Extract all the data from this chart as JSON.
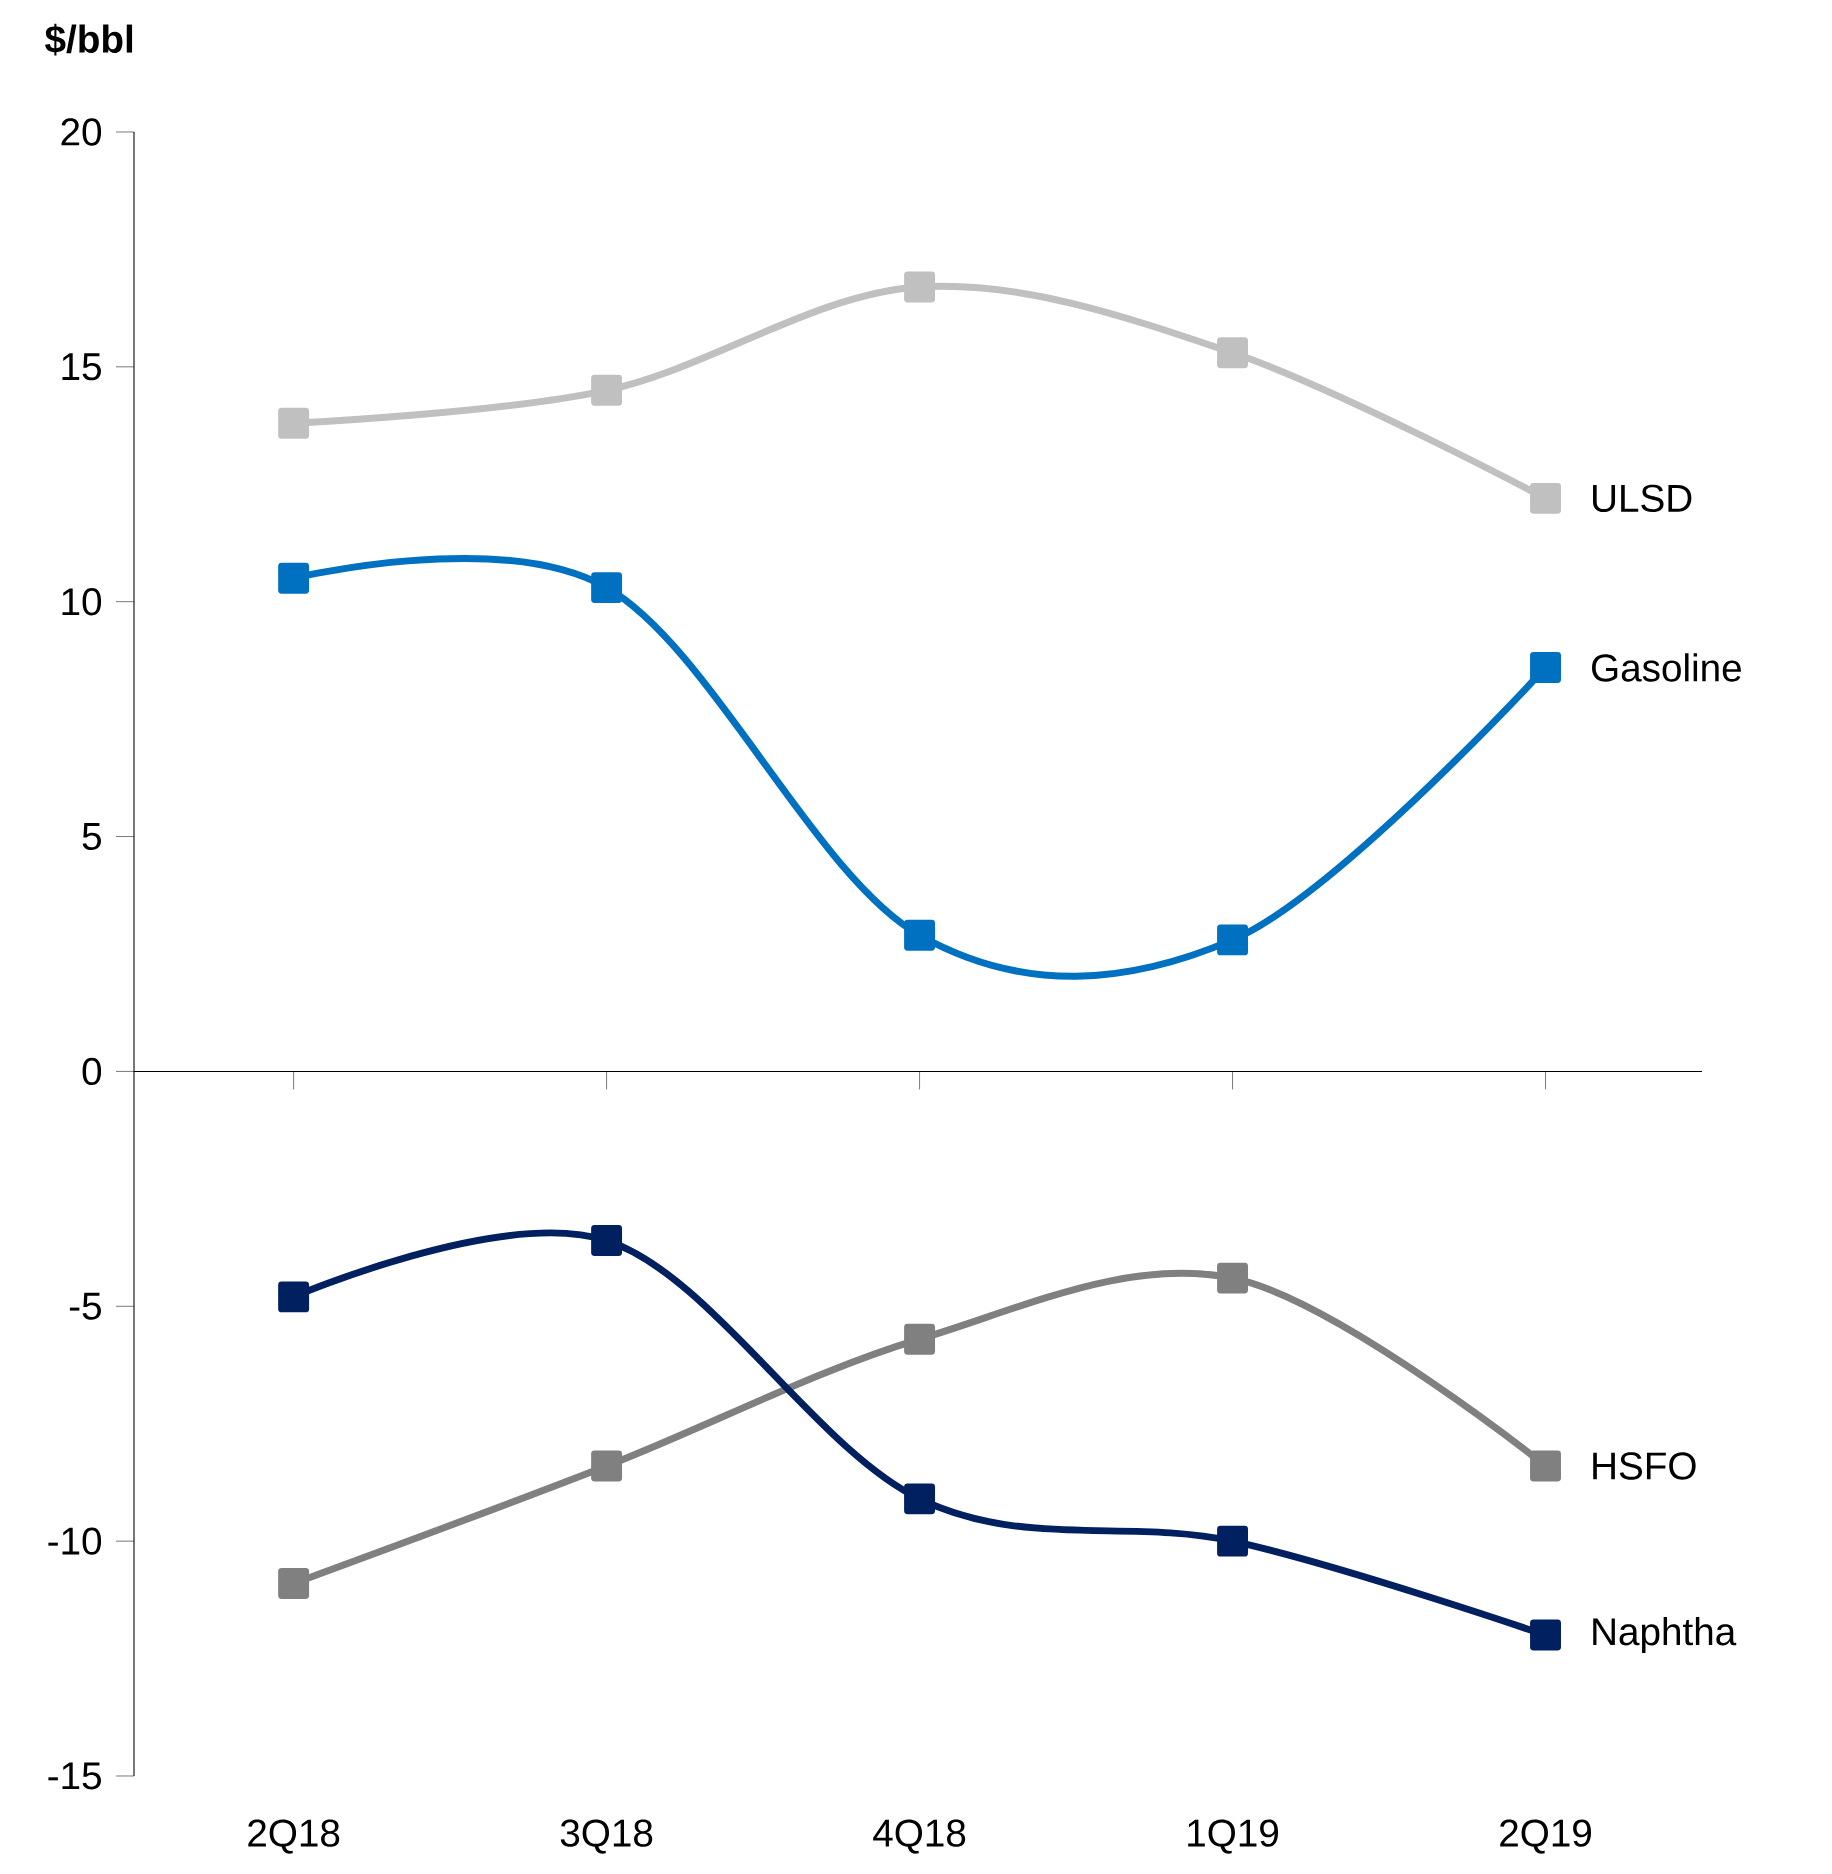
{
  "chart_data": {
    "type": "line",
    "ylabel": "$/bbl",
    "categories": [
      "2Q18",
      "3Q18",
      "4Q18",
      "1Q19",
      "2Q19"
    ],
    "series": [
      {
        "name": "ULSD",
        "color": "#c0c0c0",
        "values": [
          13.8,
          14.5,
          16.7,
          15.3,
          12.2
        ]
      },
      {
        "name": "Gasoline",
        "color": "#0070c0",
        "values": [
          10.5,
          10.3,
          2.9,
          2.8,
          8.6
        ]
      },
      {
        "name": "HSFO",
        "color": "#808080",
        "values": [
          -10.9,
          -8.4,
          -5.7,
          -4.4,
          -8.4
        ]
      },
      {
        "name": "Naphtha",
        "color": "#002060",
        "values": [
          -4.8,
          -3.6,
          -9.1,
          -10.0,
          -12.0
        ]
      }
    ],
    "ylim": [
      -15,
      20
    ],
    "yticks": [
      -15,
      -10,
      -5,
      0,
      5,
      10,
      15,
      20
    ],
    "marker": "square",
    "line_style": "solid",
    "legend": false
  }
}
